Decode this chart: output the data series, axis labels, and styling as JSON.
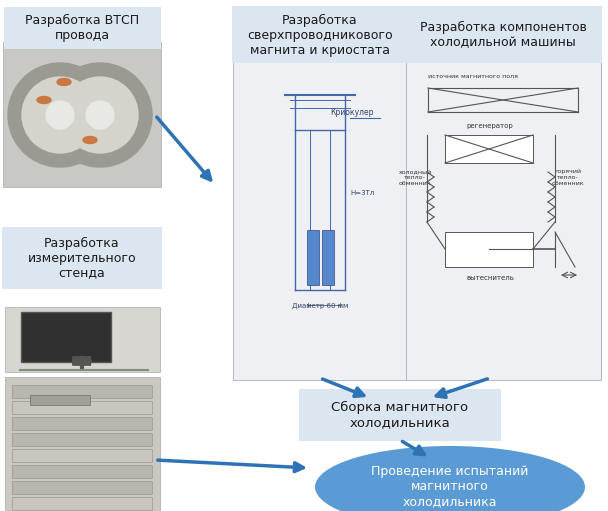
{
  "background_color": "#ffffff",
  "box_bg_color": "#dce6f1",
  "ellipse_bg_color": "#5b9bd5",
  "arrow_color": "#2e74b5",
  "text_color_dark": "#1a1a1a",
  "text_color_white": "#ffffff",
  "box1_label": "Разработка ВТСП\nпровода",
  "box2_label": "Разработка\nсверхпроводникового\nмагнита и криостата",
  "box3_label": "Разработка компонентов\nхолодильной машины",
  "box4_label": "Разработка\nизмерительного\nстенда",
  "box5_label": "Сборка магнитного\nхолодильника",
  "ellipse_label": "Проведение испытаний\nмагнитного\nхолодильника"
}
